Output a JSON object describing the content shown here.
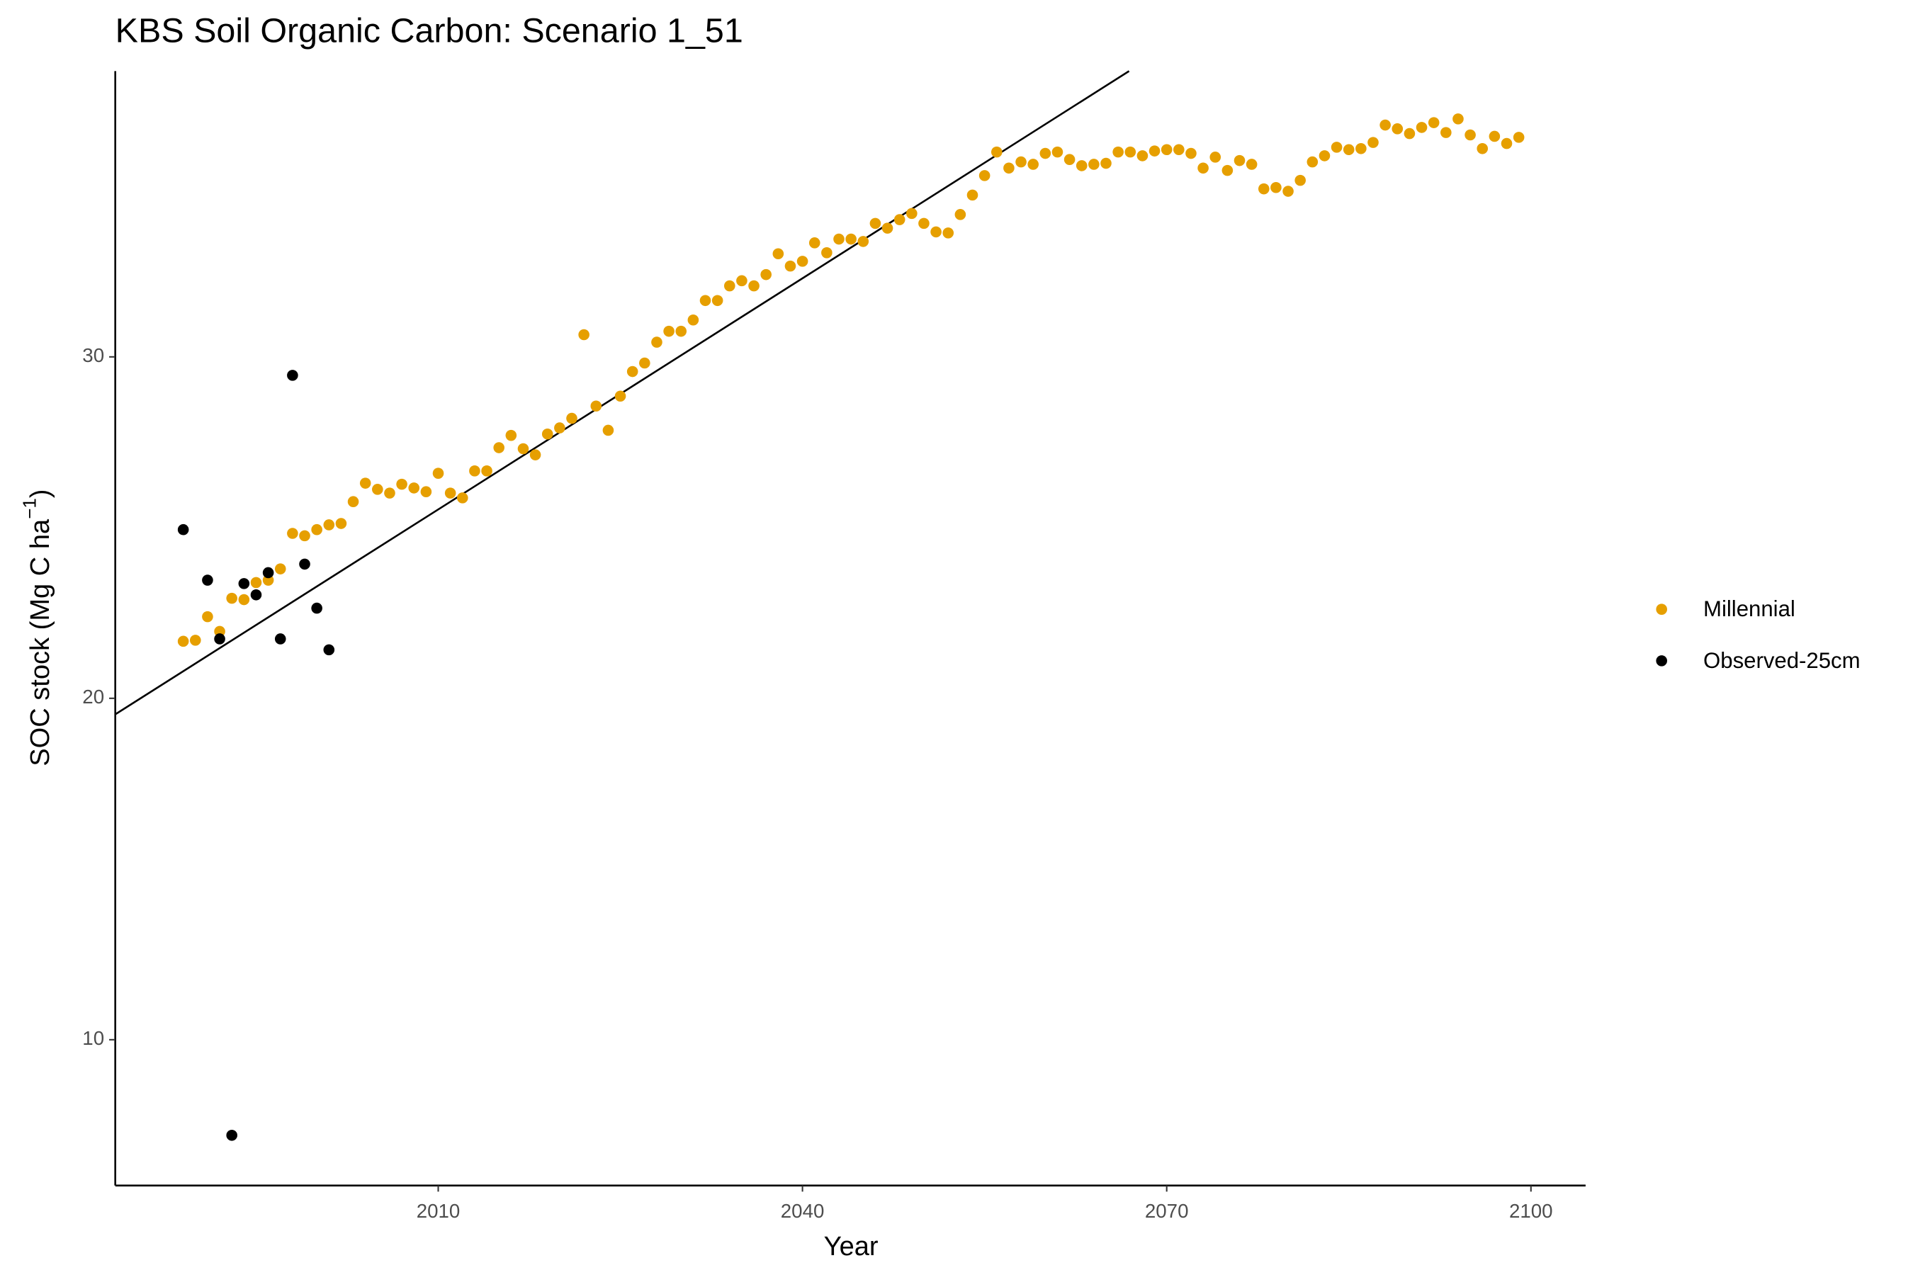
{
  "chart_data": {
    "type": "scatter",
    "title": "KBS Soil Organic Carbon: Scenario  1_51",
    "x_label": "Year",
    "y_label": {
      "text": "SOC stock (Mg C ha",
      "sup": "−1",
      "close": ")"
    },
    "xlim": [
      1983.4,
      2104.5
    ],
    "ylim": [
      5.73,
      38.37
    ],
    "xticks": [
      2010,
      2040,
      2070,
      2100
    ],
    "yticks": [
      10,
      20,
      30
    ],
    "grid": false,
    "legend": "right",
    "series": [
      {
        "name": "Millennial",
        "color": "#E69F00",
        "x": [
          1989,
          1990,
          1991,
          1992,
          1993,
          1994,
          1995,
          1996,
          1997,
          1998,
          1999,
          2000,
          2001,
          2002,
          2003,
          2004,
          2005,
          2006,
          2007,
          2008,
          2009,
          2010,
          2011,
          2012,
          2013,
          2014,
          2015,
          2016,
          2017,
          2018,
          2019,
          2020,
          2021,
          2022,
          2023,
          2024,
          2025,
          2026,
          2027,
          2028,
          2029,
          2030,
          2031,
          2032,
          2033,
          2034,
          2035,
          2036,
          2037,
          2038,
          2039,
          2040,
          2041,
          2042,
          2043,
          2044,
          2045,
          2046,
          2047,
          2048,
          2049,
          2050,
          2051,
          2052,
          2053,
          2054,
          2055,
          2056,
          2057,
          2058,
          2059,
          2060,
          2061,
          2062,
          2063,
          2064,
          2065,
          2066,
          2067,
          2068,
          2069,
          2070,
          2071,
          2072,
          2073,
          2074,
          2075,
          2076,
          2077,
          2078,
          2079,
          2080,
          2081,
          2082,
          2083,
          2084,
          2085,
          2086,
          2087,
          2088,
          2089,
          2090,
          2091,
          2092,
          2093,
          2094,
          2095,
          2096,
          2097,
          2098,
          2099
        ],
        "values": [
          21.67,
          21.7,
          22.39,
          21.96,
          22.93,
          22.89,
          23.39,
          23.46,
          23.79,
          24.83,
          24.76,
          24.94,
          25.08,
          25.12,
          25.76,
          26.3,
          26.12,
          26.01,
          26.27,
          26.16,
          26.05,
          26.59,
          26.01,
          25.87,
          26.66,
          26.66,
          27.34,
          27.7,
          27.31,
          27.13,
          27.74,
          27.92,
          28.2,
          30.65,
          28.56,
          27.85,
          28.85,
          29.57,
          29.82,
          30.43,
          30.75,
          30.75,
          31.08,
          31.65,
          31.65,
          32.08,
          32.23,
          32.08,
          32.41,
          33.02,
          32.66,
          32.8,
          33.34,
          33.05,
          33.45,
          33.45,
          33.38,
          33.91,
          33.77,
          34.02,
          34.2,
          33.91,
          33.66,
          33.63,
          34.17,
          34.74,
          35.31,
          36.0,
          35.53,
          35.71,
          35.64,
          35.96,
          36.0,
          35.78,
          35.6,
          35.64,
          35.67,
          36.0,
          36.0,
          35.89,
          36.03,
          36.07,
          36.07,
          35.96,
          35.53,
          35.85,
          35.46,
          35.75,
          35.64,
          34.92,
          34.96,
          34.85,
          35.17,
          35.71,
          35.89,
          36.14,
          36.07,
          36.1,
          36.28,
          36.79,
          36.68,
          36.54,
          36.72,
          36.86,
          36.57,
          36.97,
          36.5,
          36.1,
          36.46,
          36.25,
          36.43
        ]
      },
      {
        "name": "Observed-25cm",
        "color": "#000000",
        "x": [
          1989,
          1991,
          1992,
          1993,
          1994,
          1995,
          1996,
          1997,
          1998,
          1999,
          2000,
          2001
        ],
        "values": [
          24.94,
          23.46,
          21.74,
          7.2,
          23.36,
          23.03,
          23.68,
          21.74,
          29.46,
          23.93,
          22.64,
          21.42
        ]
      }
    ],
    "trend_line": {
      "color": "#000000",
      "x": [
        1983.4,
        2066.9
      ],
      "values": [
        19.53,
        38.37
      ]
    }
  }
}
